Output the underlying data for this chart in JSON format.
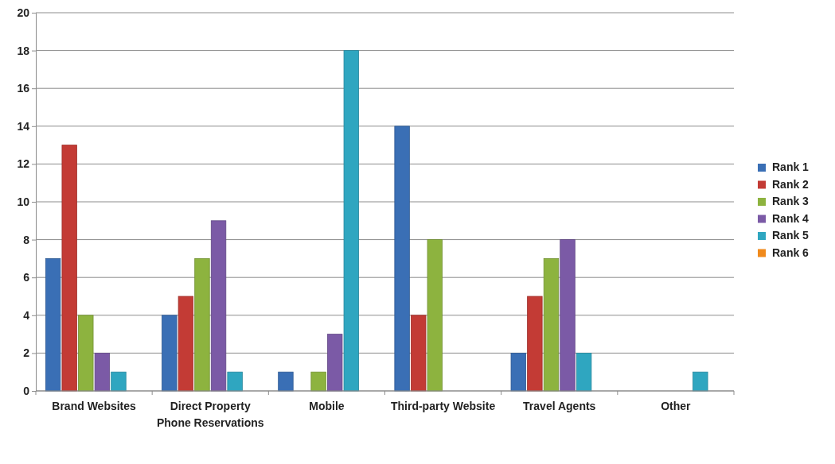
{
  "chart_data": {
    "type": "bar",
    "categories": [
      "Brand Websites",
      "Direct Property Phone Reservations",
      "Mobile",
      "Third-party Website",
      "Travel Agents",
      "Other"
    ],
    "series": [
      {
        "name": "Rank 1",
        "color": "#3a6fb5",
        "values": [
          7,
          4,
          1,
          14,
          2,
          0
        ]
      },
      {
        "name": "Rank 2",
        "color": "#c33b35",
        "values": [
          13,
          5,
          0,
          4,
          5,
          0
        ]
      },
      {
        "name": "Rank 3",
        "color": "#8db33f",
        "values": [
          4,
          7,
          1,
          8,
          7,
          0
        ]
      },
      {
        "name": "Rank 4",
        "color": "#7b5aa6",
        "values": [
          2,
          9,
          3,
          0,
          8,
          0
        ]
      },
      {
        "name": "Rank 5",
        "color": "#2fa6c0",
        "values": [
          1,
          1,
          18,
          0,
          2,
          1
        ]
      },
      {
        "name": "Rank 6",
        "color": "#f08a1c",
        "values": [
          0,
          0,
          0,
          0,
          0,
          0
        ]
      }
    ],
    "ylim": [
      0,
      20
    ],
    "yticks": [
      0,
      2,
      4,
      6,
      8,
      10,
      12,
      14,
      16,
      18,
      20
    ],
    "grid": "y",
    "legend": "right"
  }
}
